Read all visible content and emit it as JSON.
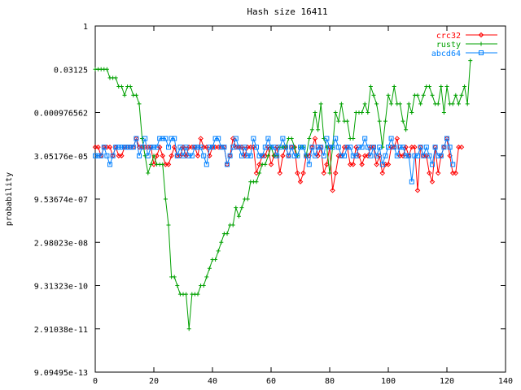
{
  "chart_data": {
    "type": "line",
    "title": "Hash size 16411",
    "xlabel": "",
    "ylabel": "probability",
    "xlim": [
      0,
      140
    ],
    "ylim": [
      9.09495e-13,
      1
    ],
    "y_scale": "log2",
    "grid": false,
    "legend_position": "top-right",
    "x_ticks": [
      "0",
      "20",
      "40",
      "60",
      "80",
      "100",
      "120",
      "140"
    ],
    "y_ticks": [
      "1",
      "0.03125",
      "0.000976562",
      "3.05176e-05",
      "9.53674e-07",
      "2.98023e-08",
      "9.31323e-10",
      "2.91038e-11",
      "9.09495e-13"
    ],
    "series": [
      {
        "name": "crc32",
        "color": "#ff0000",
        "marker": "diamond",
        "log2_values": [
          -14,
          -14,
          -15,
          -14,
          -14,
          -14,
          -15,
          -14,
          -15,
          -15,
          -14,
          -14,
          -14,
          -14,
          -13,
          -14,
          -14,
          -14,
          -14,
          -14,
          -16,
          -15,
          -14,
          -15,
          -16,
          -16,
          -15,
          -14,
          -15,
          -15,
          -14,
          -15,
          -14,
          -14,
          -14,
          -15,
          -13,
          -14,
          -14,
          -15,
          -14,
          -14,
          -14,
          -14,
          -14,
          -16,
          -15,
          -13,
          -14,
          -14,
          -14,
          -15,
          -14,
          -14,
          -14,
          -17,
          -16,
          -15,
          -15,
          -14,
          -16,
          -15,
          -14,
          -17,
          -15,
          -14,
          -15,
          -14,
          -14,
          -17,
          -18,
          -17,
          -15,
          -15,
          -14,
          -13,
          -15,
          -14,
          -17,
          -16,
          -14,
          -19,
          -17,
          -15,
          -15,
          -14,
          -14,
          -16,
          -16,
          -14,
          -15,
          -16,
          -15,
          -15,
          -14,
          -14,
          -16,
          -15,
          -17,
          -16,
          -16,
          -14,
          -14,
          -13,
          -15,
          -15,
          -14,
          -15,
          -14,
          -14,
          -19,
          -14,
          -15,
          -15,
          -17,
          -18,
          -14,
          -17,
          -15,
          -14,
          -13,
          -15,
          -17,
          -17,
          -14,
          -14
        ]
      },
      {
        "name": "rusty",
        "color": "#00a000",
        "marker": "plus",
        "log2_values": [
          -5,
          -5,
          -5,
          -5,
          -5,
          -6,
          -6,
          -6,
          -7,
          -7,
          -8,
          -7,
          -7,
          -8,
          -8,
          -9,
          -13,
          -15,
          -17,
          -16,
          -15,
          -16,
          -16,
          -16,
          -20,
          -23,
          -29,
          -29,
          -30,
          -31,
          -31,
          -31,
          -35,
          -31,
          -31,
          -31,
          -30,
          -30,
          -29,
          -28,
          -27,
          -27,
          -26,
          -25,
          -24,
          -24,
          -23,
          -23,
          -21,
          -22,
          -21,
          -20,
          -20,
          -18,
          -18,
          -18,
          -17,
          -16,
          -16,
          -15,
          -14,
          -15,
          -15,
          -14,
          -14,
          -14,
          -13,
          -13,
          -14,
          -15,
          -14,
          -14,
          -15,
          -13,
          -12,
          -10,
          -12,
          -9,
          -13,
          -14,
          -17,
          -14,
          -10,
          -11,
          -9,
          -11,
          -11,
          -13,
          -13,
          -10,
          -10,
          -10,
          -9,
          -10,
          -7,
          -8,
          -9,
          -11,
          -14,
          -11,
          -8,
          -9,
          -7,
          -9,
          -9,
          -11,
          -12,
          -9,
          -10,
          -8,
          -8,
          -9,
          -8,
          -7,
          -7,
          -8,
          -9,
          -9,
          -7,
          -10,
          -7,
          -9,
          -9,
          -8,
          -9,
          -8,
          -7,
          -9,
          -4
        ]
      },
      {
        "name": "abcd64",
        "color": "#0080ff",
        "marker": "square",
        "log2_values": [
          -15,
          -15,
          -15,
          -14,
          -15,
          -16,
          -15,
          -14,
          -14,
          -14,
          -14,
          -14,
          -14,
          -14,
          -13,
          -15,
          -14,
          -13,
          -15,
          -14,
          -14,
          -14,
          -13,
          -13,
          -13,
          -14,
          -13,
          -13,
          -15,
          -14,
          -15,
          -14,
          -15,
          -15,
          -14,
          -14,
          -14,
          -15,
          -16,
          -14,
          -14,
          -13,
          -13,
          -14,
          -14,
          -16,
          -15,
          -14,
          -13,
          -14,
          -15,
          -14,
          -15,
          -15,
          -13,
          -14,
          -15,
          -15,
          -14,
          -13,
          -14,
          -14,
          -15,
          -14,
          -13,
          -14,
          -15,
          -14,
          -15,
          -15,
          -14,
          -14,
          -15,
          -16,
          -14,
          -15,
          -14,
          -14,
          -15,
          -13,
          -14,
          -14,
          -13,
          -14,
          -15,
          -15,
          -14,
          -14,
          -15,
          -15,
          -14,
          -14,
          -13,
          -14,
          -15,
          -14,
          -15,
          -14,
          -16,
          -15,
          -14,
          -13,
          -14,
          -15,
          -14,
          -14,
          -15,
          -15,
          -18,
          -15,
          -15,
          -14,
          -15,
          -14,
          -15,
          -16,
          -14,
          -15,
          -15,
          -14,
          -13,
          -14,
          -16
        ]
      }
    ]
  }
}
